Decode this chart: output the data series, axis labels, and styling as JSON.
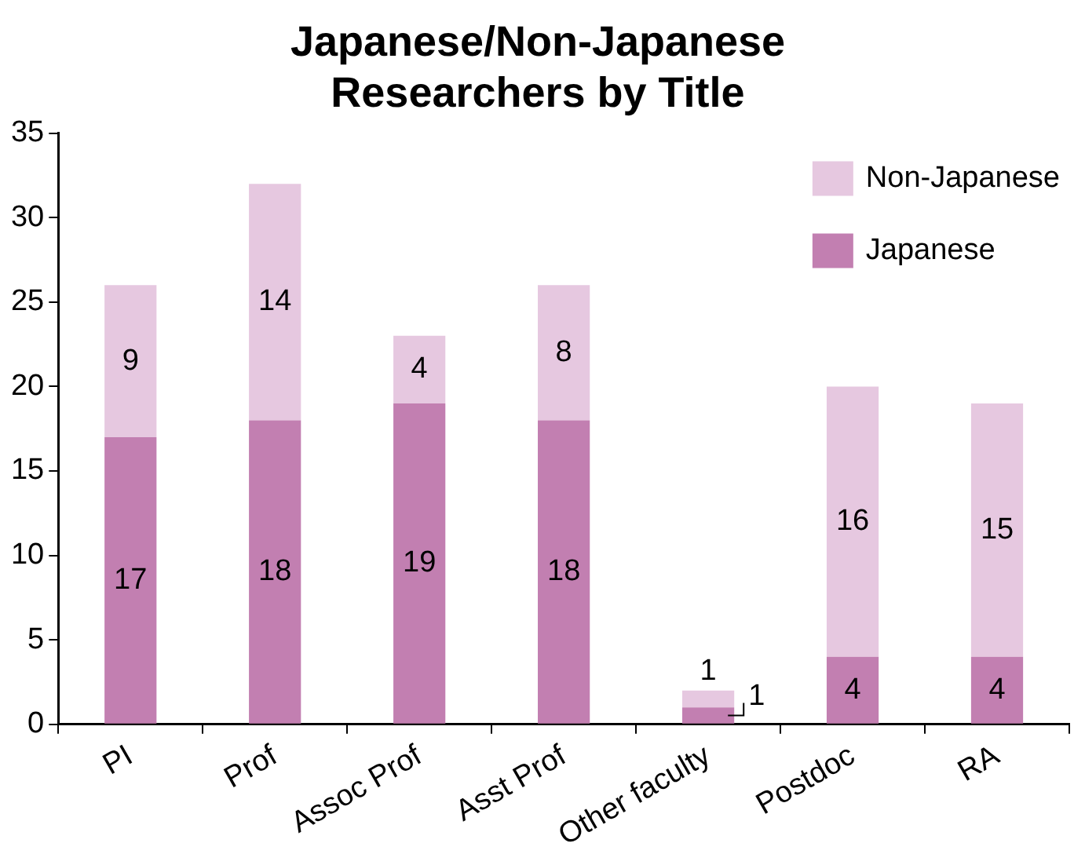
{
  "chart_data": {
    "type": "bar",
    "title": "Japanese/Non-Japanese Researchers by Title",
    "categories": [
      "PI",
      "Prof",
      "Assoc Prof",
      "Asst Prof",
      "Other faculty",
      "Postdoc",
      "RA"
    ],
    "series": [
      {
        "name": "Japanese",
        "color": "#c27fb1",
        "values": [
          17,
          18,
          19,
          18,
          1,
          4,
          4
        ]
      },
      {
        "name": "Non-Japanese",
        "color": "#e6c8e0",
        "values": [
          9,
          14,
          4,
          8,
          1,
          16,
          15
        ]
      }
    ],
    "stacked": true,
    "ylim": [
      0,
      35
    ],
    "yticks": [
      0,
      5,
      10,
      15,
      20,
      25,
      30,
      35
    ],
    "grid": false,
    "legend": "top right",
    "data_labels": true
  }
}
